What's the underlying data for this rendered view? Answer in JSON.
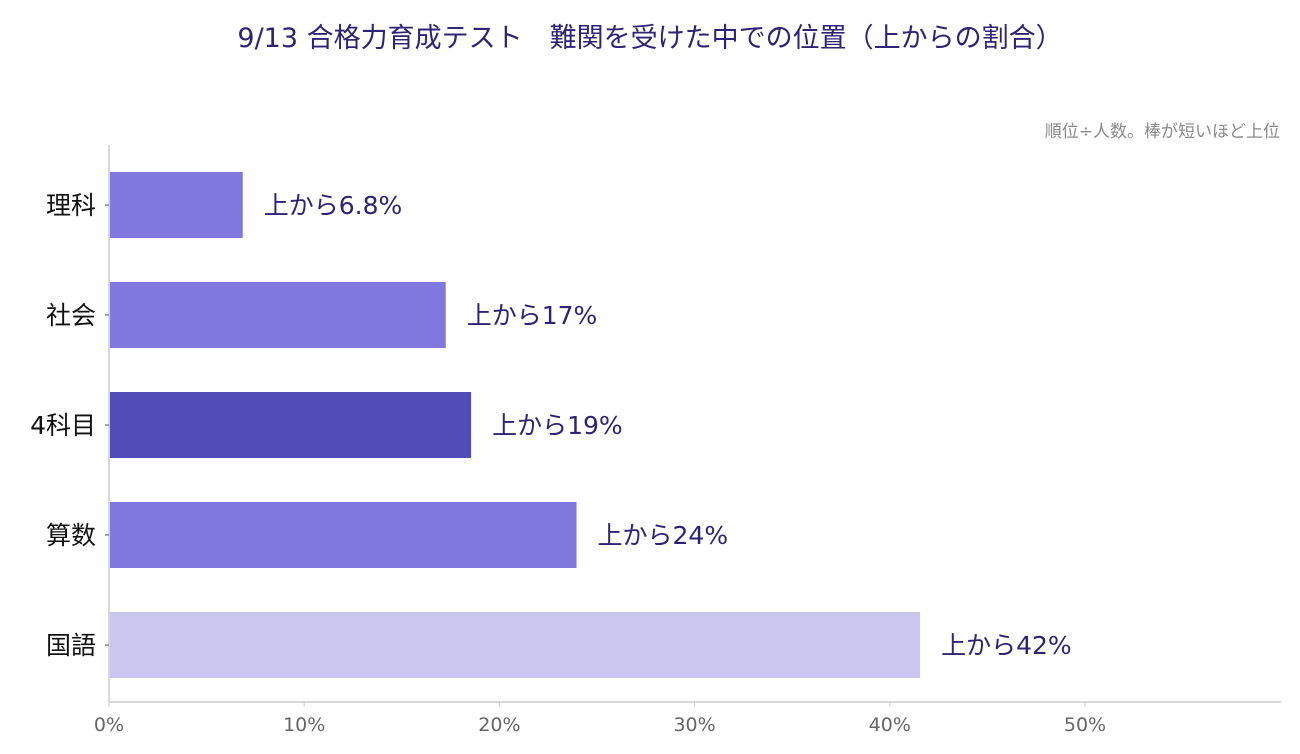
{
  "chart_data": {
    "type": "bar",
    "orientation": "horizontal",
    "title": "9/13 合格力育成テスト　難関を受けた中での位置（上からの割合）",
    "note": "順位÷人数。棒が短いほど上位",
    "categories": [
      "理科",
      "社会",
      "4科目",
      "算数",
      "国語"
    ],
    "values": [
      6.8,
      17.2,
      18.5,
      23.9,
      41.5
    ],
    "value_labels": [
      "上から6.8%",
      "上から17%",
      "上から19%",
      "上から24%",
      "上から42%"
    ],
    "bar_colors": [
      "#8078df",
      "#8078df",
      "#524cb8",
      "#8078df",
      "#cbc6f0"
    ],
    "xlim": [
      0,
      60
    ],
    "xticks": [
      0,
      10,
      20,
      30,
      40,
      50
    ],
    "xtick_labels": [
      "0%",
      "10%",
      "20%",
      "30%",
      "40%",
      "50%"
    ],
    "grid": false,
    "colors": {
      "text_accent": "#2e2475",
      "axis": "#cccccc",
      "tick_text": "#666666"
    }
  }
}
